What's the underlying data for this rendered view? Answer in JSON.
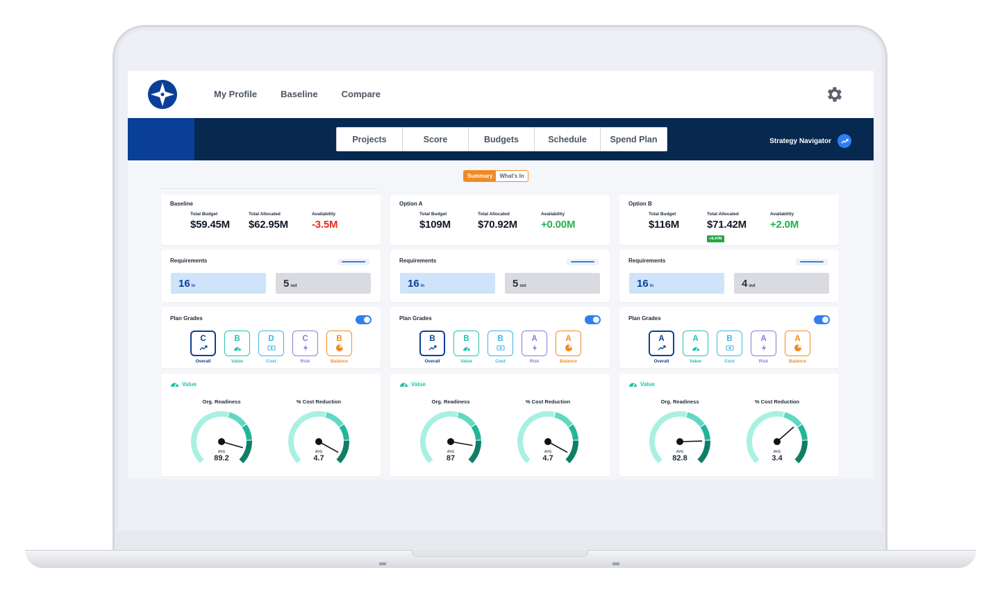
{
  "topbar": {
    "nav": [
      "My Profile",
      "Baseline",
      "Compare"
    ]
  },
  "tabs": [
    "Projects",
    "Score",
    "Budgets",
    "Schedule",
    "Spend Plan"
  ],
  "strategy_navigator": "Strategy Navigator",
  "view_toggle": {
    "active": "Summary",
    "inactive": "What's In"
  },
  "labels": {
    "total_budget": "Total Budget",
    "total_allocated": "Total Allocated",
    "availability": "Availability",
    "requirements": "Requirements",
    "in_suffix": "in",
    "out_suffix": "out",
    "plan_grades": "Plan Grades",
    "value": "Value",
    "org_readiness": "Org. Readiness",
    "cost_reduction": "% Cost Reduction",
    "avg": "AVG"
  },
  "colors": {
    "navy": "#07284f",
    "brand_blue": "#0a3f98",
    "orange": "#f08a24",
    "positive": "#22b14c",
    "negative": "#e0301e",
    "teal": "#1fc3a7"
  },
  "grade_categories": [
    {
      "label": "Overall",
      "icon": "trend-icon",
      "color": "#0a3f98"
    },
    {
      "label": "Value",
      "icon": "gauge-icon",
      "color": "#1fc3a7"
    },
    {
      "label": "Cost",
      "icon": "money-icon",
      "color": "#3bb3e8"
    },
    {
      "label": "Risk",
      "icon": "bolt-icon",
      "color": "#8b7bd8"
    },
    {
      "label": "Balance",
      "icon": "pie-icon",
      "color": "#f08a24"
    }
  ],
  "options": [
    {
      "name": "Baseline",
      "total_budget": "$59.45M",
      "total_allocated": "$62.95M",
      "availability": "-3.5M",
      "availability_positive": false,
      "badge": "",
      "req_in": "16",
      "req_out": "5",
      "grades": [
        "C",
        "B",
        "D",
        "C",
        "B"
      ],
      "org_readiness": "89.2",
      "org_readiness_value": 89.2,
      "cost_reduction": "4.7",
      "cost_reduction_value": 4.7
    },
    {
      "name": "Option A",
      "total_budget": "$109M",
      "total_allocated": "$70.92M",
      "availability": "+0.00M",
      "availability_positive": true,
      "badge": "",
      "req_in": "16",
      "req_out": "5",
      "grades": [
        "B",
        "B",
        "B",
        "A",
        "A"
      ],
      "org_readiness": "87",
      "org_readiness_value": 87,
      "cost_reduction": "4.7",
      "cost_reduction_value": 4.7
    },
    {
      "name": "Option B",
      "total_budget": "$116M",
      "total_allocated": "$71.42M",
      "availability": "+2.0M",
      "availability_positive": true,
      "badge": "+8.47M",
      "req_in": "16",
      "req_out": "4",
      "grades": [
        "A",
        "A",
        "B",
        "A",
        "A"
      ],
      "org_readiness": "82.8",
      "org_readiness_value": 82.8,
      "cost_reduction": "3.4",
      "cost_reduction_value": 3.4
    }
  ]
}
